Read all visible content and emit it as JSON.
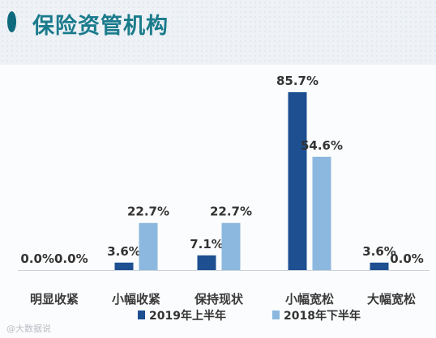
{
  "header": {
    "title": "保险资管机构"
  },
  "watermark": "@大数据说",
  "chart_data": {
    "type": "bar",
    "title": "",
    "xlabel": "",
    "ylabel": "",
    "ylim": [
      0,
      100
    ],
    "grid": false,
    "legend_position": "bottom",
    "categories": [
      "明显收紧",
      "小幅收紧",
      "保持现状",
      "小幅宽松",
      "大幅宽松"
    ],
    "series": [
      {
        "name": "2019年上半年",
        "values": [
          0.0,
          3.6,
          7.1,
          85.7,
          3.6
        ],
        "labels": [
          "0.0%",
          "3.6%",
          "7.1%",
          "85.7%",
          "3.6%"
        ],
        "color": "#1d4f91"
      },
      {
        "name": "2018年下半年",
        "values": [
          0.0,
          22.7,
          22.7,
          54.6,
          0.0
        ],
        "labels": [
          "0.0%",
          "22.7%",
          "22.7%",
          "54.6%",
          "0.0%"
        ],
        "color": "#8cb8df"
      }
    ]
  }
}
